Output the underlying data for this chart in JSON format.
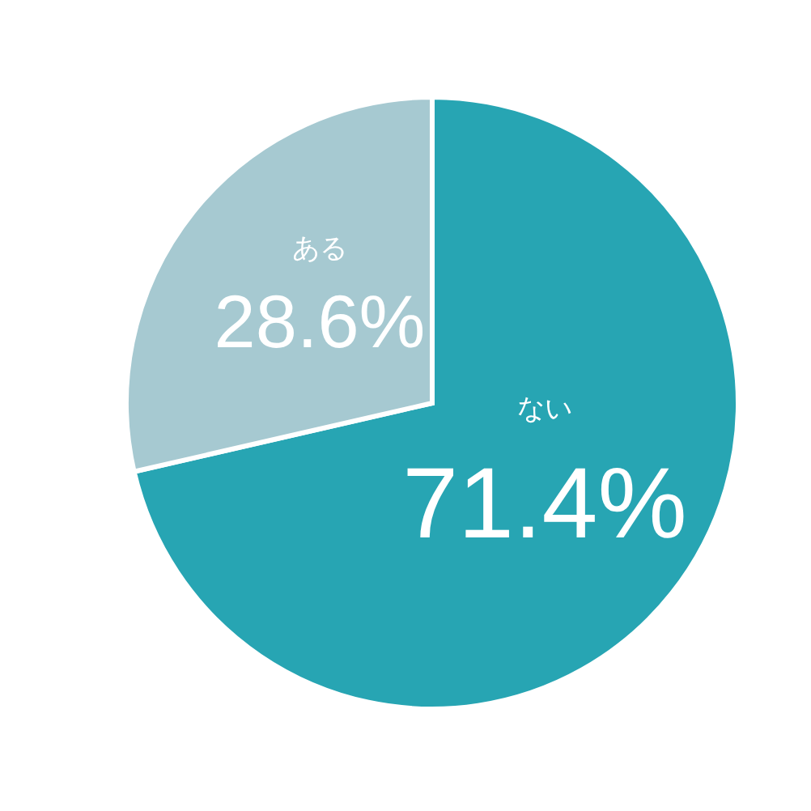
{
  "chart_data": {
    "type": "pie",
    "categories": [
      "ない",
      "ある"
    ],
    "values": [
      71.4,
      28.6
    ],
    "colors": [
      "#27a5b3",
      "#a6c9d1"
    ],
    "value_labels": [
      "71.4%",
      "28.6%"
    ]
  }
}
